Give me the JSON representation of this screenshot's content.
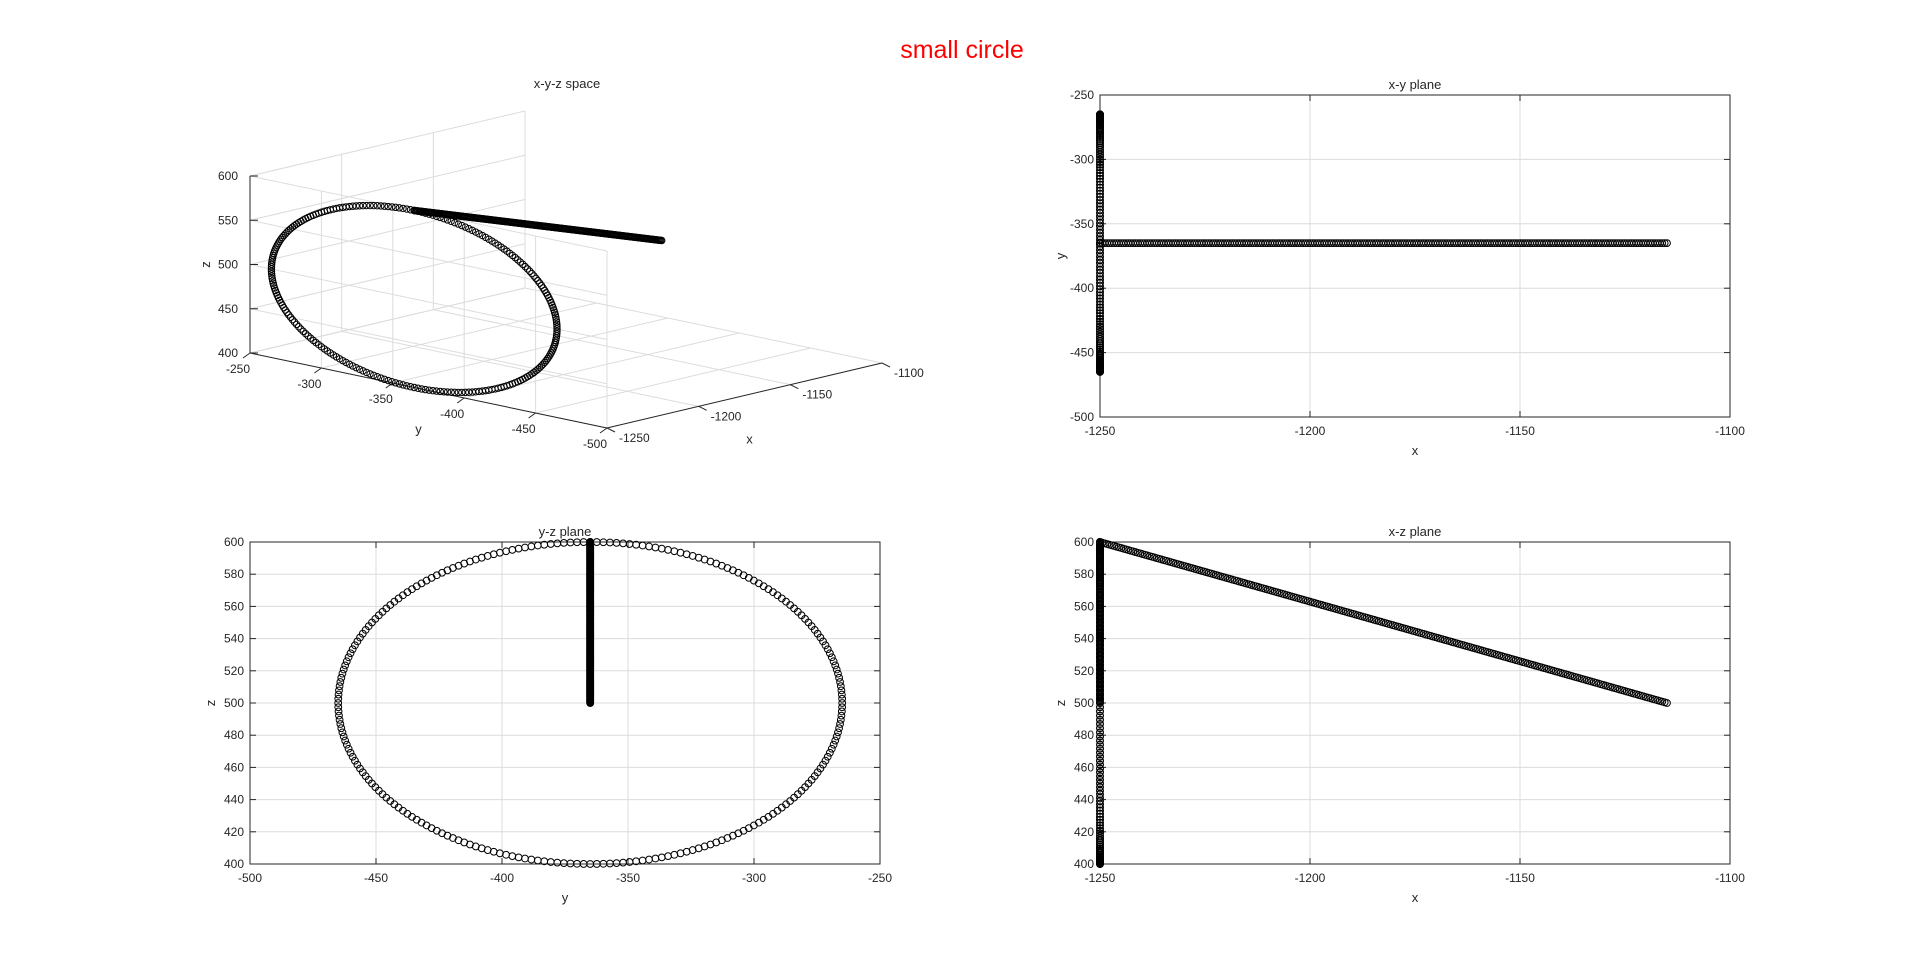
{
  "figure": {
    "title": "small circle",
    "title_color": "#ff0000"
  },
  "chart_data": [
    {
      "type": "scatter",
      "subtype": "3d",
      "title": "x-y-z space",
      "xlabel": "x",
      "ylabel": "y",
      "zlabel": "z",
      "xlim": [
        -1250,
        -1100
      ],
      "ylim": [
        -500,
        -250
      ],
      "zlim": [
        400,
        600
      ],
      "xticks": [
        -1250,
        -1200,
        -1150,
        -1100
      ],
      "yticks": [
        -250,
        -300,
        -350,
        -400,
        -450,
        -500
      ],
      "zticks": [
        400,
        450,
        500,
        550,
        600
      ],
      "grid": true,
      "marker": "o",
      "marker_color": "#000000"
    },
    {
      "type": "scatter",
      "title": "x-y plane",
      "xlabel": "x",
      "ylabel": "y",
      "xlim": [
        -1250,
        -1100
      ],
      "ylim": [
        -500,
        -250
      ],
      "xticks": [
        -1250,
        -1200,
        -1150,
        -1100
      ],
      "yticks": [
        -250,
        -300,
        -350,
        -400,
        -450,
        -500
      ],
      "grid": true,
      "marker": "o",
      "marker_color": "#000000"
    },
    {
      "type": "scatter",
      "title": "y-z plane",
      "xlabel": "y",
      "ylabel": "z",
      "xlim": [
        -500,
        -250
      ],
      "ylim": [
        400,
        600
      ],
      "xticks": [
        -500,
        -450,
        -400,
        -350,
        -300,
        -250
      ],
      "yticks": [
        400,
        420,
        440,
        460,
        480,
        500,
        520,
        540,
        560,
        580,
        600
      ],
      "grid": true,
      "marker": "o",
      "marker_color": "#000000"
    },
    {
      "type": "scatter",
      "title": "x-z plane",
      "xlabel": "x",
      "ylabel": "z",
      "xlim": [
        -1250,
        -1100
      ],
      "ylim": [
        400,
        600
      ],
      "xticks": [
        -1250,
        -1200,
        -1150,
        -1100
      ],
      "yticks": [
        400,
        420,
        440,
        460,
        480,
        500,
        520,
        540,
        560,
        580,
        600
      ],
      "grid": true,
      "marker": "o",
      "marker_color": "#000000"
    }
  ],
  "trajectory": {
    "start": {
      "x": -1115,
      "y": -365,
      "z": 500
    },
    "circle": {
      "x": -1250,
      "center_y": -365,
      "center_z": 500,
      "radius_y": 100,
      "radius_z": 100
    },
    "circle_top": {
      "x": -1250,
      "y": -365,
      "z": 600
    },
    "points_per_segment": 240
  }
}
